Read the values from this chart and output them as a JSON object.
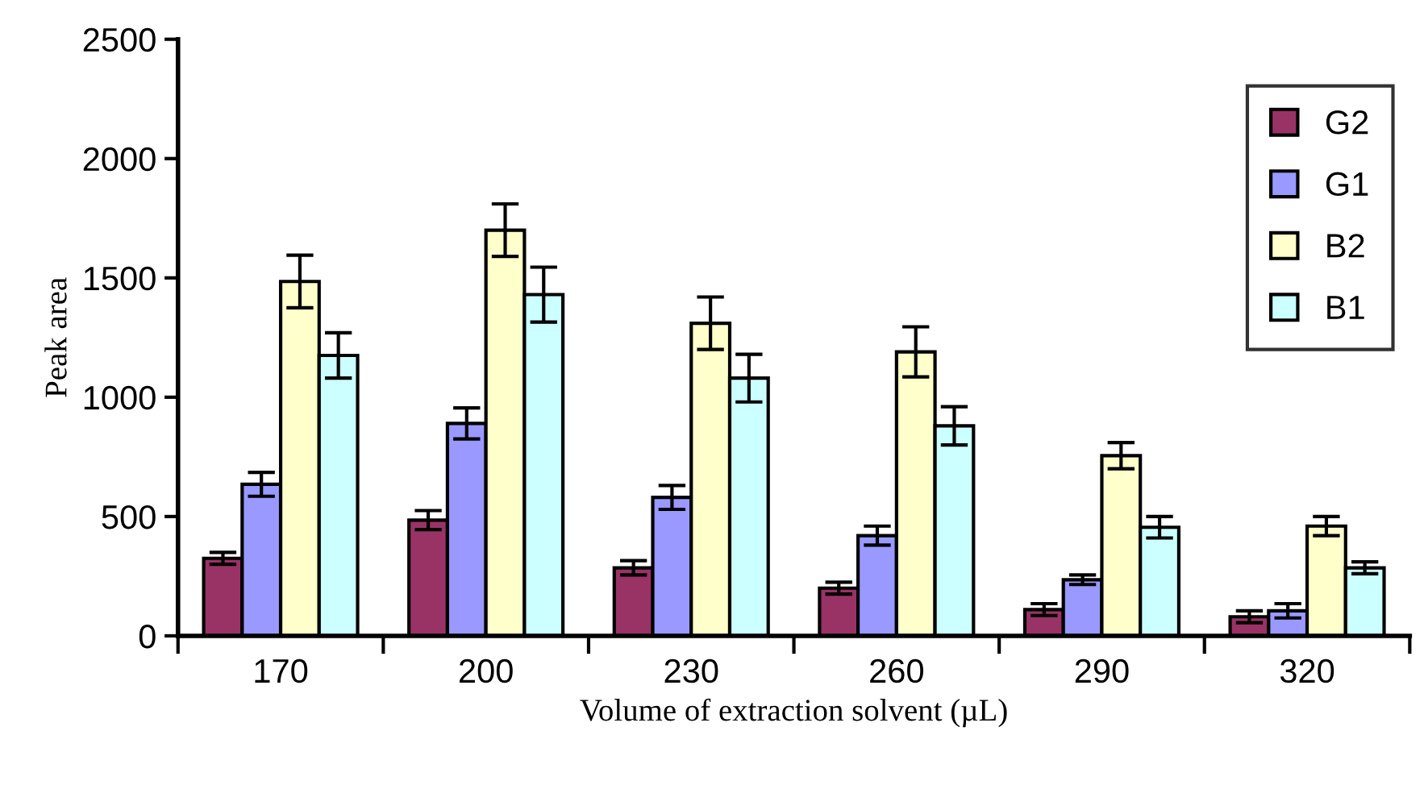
{
  "chart_data": {
    "type": "bar",
    "xlabel": "Volume of extraction solvent (µL)",
    "ylabel": "Peak area",
    "categories": [
      "170",
      "200",
      "230",
      "260",
      "290",
      "320"
    ],
    "series": [
      {
        "name": "G2",
        "color": "#993366",
        "values": [
          325,
          485,
          285,
          200,
          110,
          80
        ],
        "errors": [
          25,
          40,
          30,
          25,
          25,
          25
        ]
      },
      {
        "name": "G1",
        "color": "#9999ff",
        "values": [
          635,
          890,
          580,
          420,
          235,
          105
        ],
        "errors": [
          50,
          65,
          50,
          40,
          20,
          30
        ]
      },
      {
        "name": "B2",
        "color": "#ffffcc",
        "values": [
          1485,
          1700,
          1310,
          1190,
          755,
          460
        ],
        "errors": [
          110,
          110,
          110,
          105,
          55,
          40
        ]
      },
      {
        "name": "B1",
        "color": "#ccffff",
        "values": [
          1175,
          1430,
          1080,
          880,
          455,
          285
        ],
        "errors": [
          95,
          115,
          100,
          80,
          45,
          25
        ]
      }
    ],
    "ylim": [
      0,
      2500
    ],
    "yticks": [
      0,
      500,
      1000,
      1500,
      2000,
      2500
    ],
    "grid": false,
    "legend": "top right"
  }
}
